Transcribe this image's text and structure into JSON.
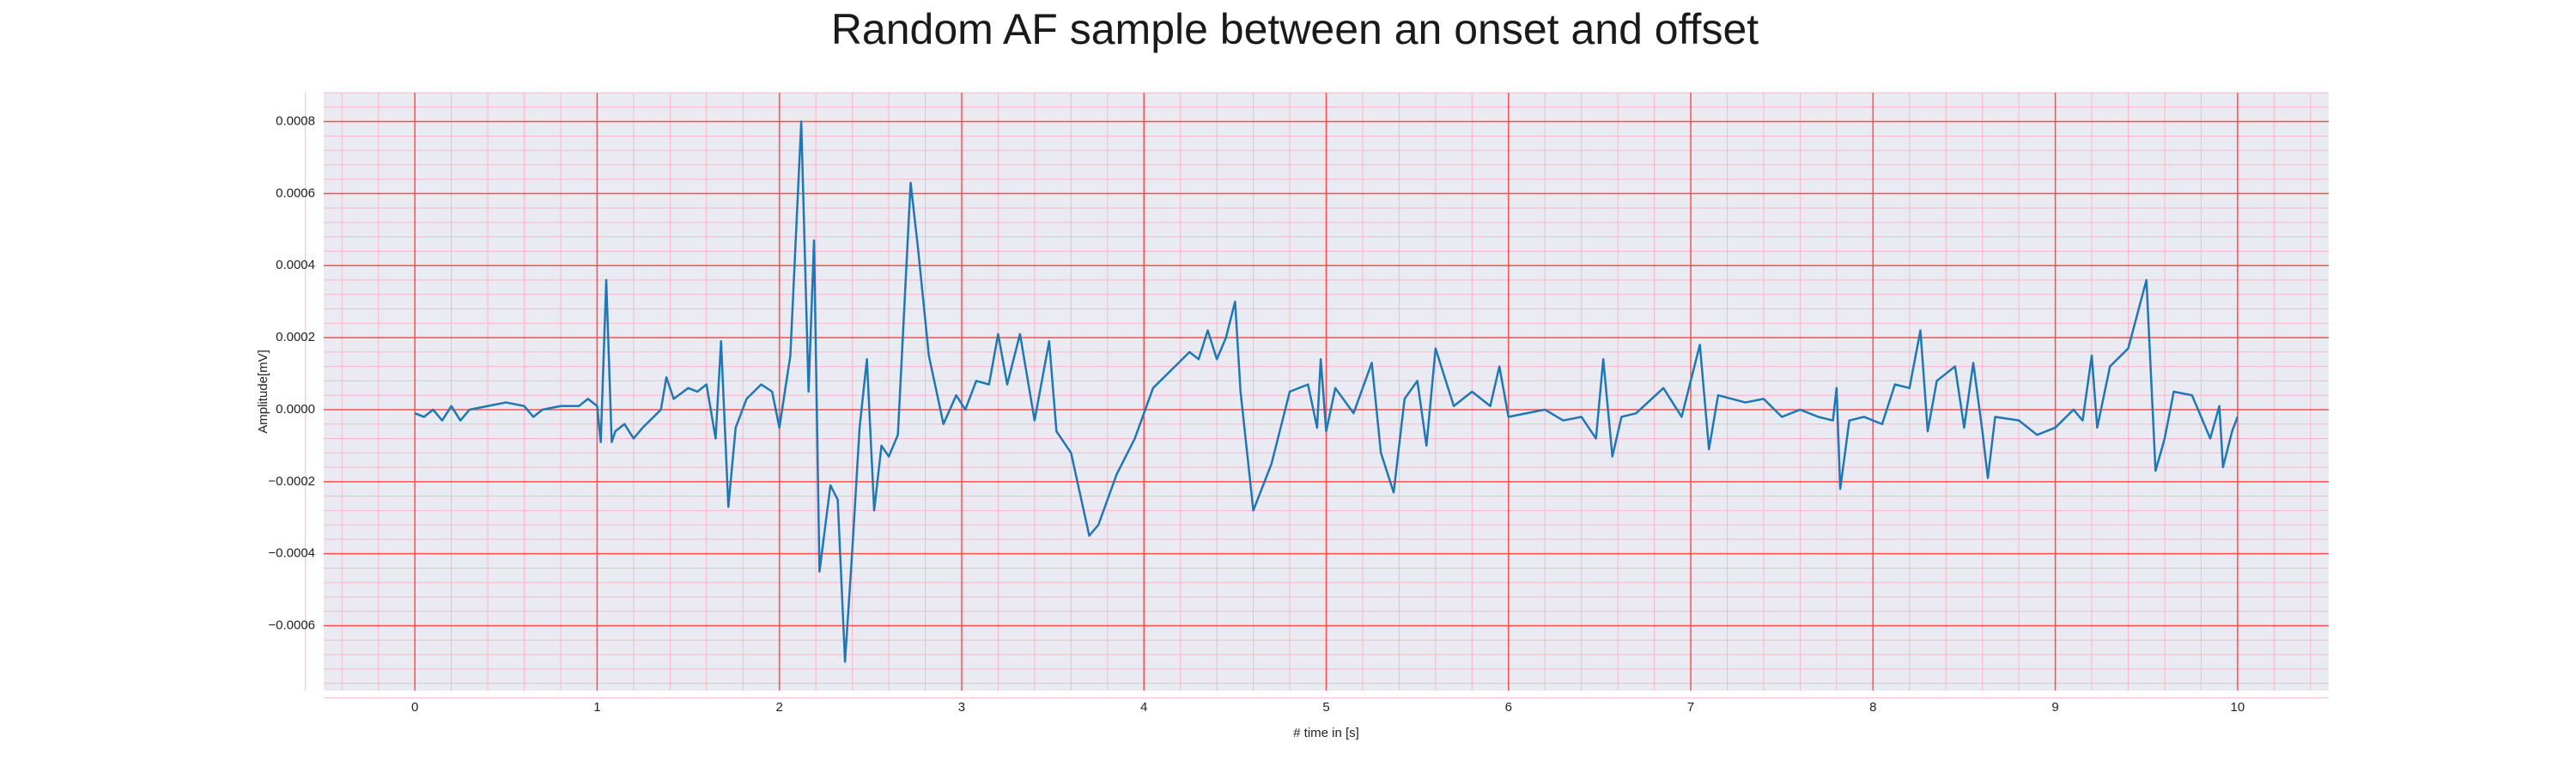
{
  "chart_data": {
    "type": "line",
    "title": "Random AF sample between an onset and offset",
    "xlabel": "# time in [s]",
    "ylabel": "Amplitude[mV]",
    "xlim": [
      -0.5,
      10.5
    ],
    "ylim": [
      -0.00078,
      0.00088
    ],
    "xticks": [
      0,
      1,
      2,
      3,
      4,
      5,
      6,
      7,
      8,
      9,
      10
    ],
    "yticks": [
      {
        "value": -0.0006,
        "label": "−0.0006"
      },
      {
        "value": -0.0004,
        "label": "−0.0004"
      },
      {
        "value": -0.0002,
        "label": "−0.0002"
      },
      {
        "value": 0,
        "label": "0.0000"
      },
      {
        "value": 0.0002,
        "label": "0.0002"
      },
      {
        "value": 0.0004,
        "label": "0.0004"
      },
      {
        "value": 0.0006,
        "label": "0.0006"
      },
      {
        "value": 0.0008,
        "label": "0.0008"
      }
    ],
    "grid": true,
    "minor_grid": true,
    "grid_color": "#ff4d4d",
    "minor_grid_color": "#f7b8c8",
    "background": "#eaeaf2",
    "series": [
      {
        "color": "#1f77b4",
        "x": [
          0,
          0.05,
          0.1,
          0.15,
          0.2,
          0.25,
          0.3,
          0.4,
          0.5,
          0.6,
          0.65,
          0.7,
          0.8,
          0.9,
          0.95,
          1.0,
          1.02,
          1.05,
          1.08,
          1.1,
          1.15,
          1.2,
          1.25,
          1.35,
          1.38,
          1.42,
          1.5,
          1.55,
          1.6,
          1.65,
          1.68,
          1.72,
          1.76,
          1.82,
          1.9,
          1.96,
          2.0,
          2.06,
          2.12,
          2.16,
          2.19,
          2.22,
          2.28,
          2.32,
          2.36,
          2.4,
          2.44,
          2.48,
          2.52,
          2.56,
          2.6,
          2.65,
          2.72,
          2.76,
          2.82,
          2.9,
          2.97,
          3.02,
          3.08,
          3.15,
          3.2,
          3.25,
          3.32,
          3.4,
          3.48,
          3.52,
          3.6,
          3.7,
          3.75,
          3.85,
          3.95,
          4.05,
          4.15,
          4.25,
          4.3,
          4.35,
          4.4,
          4.45,
          4.5,
          4.53,
          4.6,
          4.7,
          4.8,
          4.9,
          4.95,
          4.97,
          5.0,
          5.05,
          5.15,
          5.25,
          5.3,
          5.37,
          5.43,
          5.5,
          5.55,
          5.6,
          5.7,
          5.8,
          5.9,
          5.95,
          6.0,
          6.1,
          6.2,
          6.3,
          6.4,
          6.48,
          6.52,
          6.57,
          6.62,
          6.7,
          6.85,
          6.95,
          7.05,
          7.1,
          7.15,
          7.3,
          7.4,
          7.5,
          7.6,
          7.7,
          7.78,
          7.8,
          7.82,
          7.87,
          7.95,
          8.05,
          8.12,
          8.2,
          8.26,
          8.3,
          8.35,
          8.45,
          8.5,
          8.55,
          8.6,
          8.63,
          8.67,
          8.8,
          8.9,
          9.0,
          9.1,
          9.15,
          9.2,
          9.23,
          9.3,
          9.4,
          9.5,
          9.55,
          9.6,
          9.65,
          9.75,
          9.85,
          9.9,
          9.92,
          9.97,
          10.0
        ],
        "values": [
          -1e-05,
          -2e-05,
          0.0,
          -3e-05,
          1e-05,
          -3e-05,
          0.0,
          1e-05,
          2e-05,
          1e-05,
          -2e-05,
          0.0,
          1e-05,
          1e-05,
          3e-05,
          1e-05,
          -9e-05,
          0.00036,
          -9e-05,
          -6e-05,
          -4e-05,
          -8e-05,
          -5e-05,
          0.0,
          9e-05,
          3e-05,
          6e-05,
          5e-05,
          7e-05,
          -8e-05,
          0.00019,
          -0.00027,
          -5e-05,
          3e-05,
          7e-05,
          5e-05,
          -5e-05,
          0.00015,
          0.0008,
          5e-05,
          0.00047,
          -0.00045,
          -0.00021,
          -0.00025,
          -0.0007,
          -0.00039,
          -5e-05,
          0.00014,
          -0.00028,
          -0.0001,
          -0.00013,
          -7e-05,
          0.00063,
          0.00045,
          0.00015,
          -4e-05,
          4e-05,
          0.0,
          8e-05,
          7e-05,
          0.00021,
          7e-05,
          0.00021,
          -3e-05,
          0.00019,
          -6e-05,
          -0.00012,
          -0.00035,
          -0.00032,
          -0.00018,
          -8e-05,
          6e-05,
          0.00011,
          0.00016,
          0.00014,
          0.00022,
          0.00014,
          0.0002,
          0.0003,
          5e-05,
          -0.00028,
          -0.00015,
          5e-05,
          7e-05,
          -5e-05,
          0.00014,
          -6e-05,
          6e-05,
          -1e-05,
          0.00013,
          -0.00012,
          -0.00023,
          3e-05,
          8e-05,
          -0.0001,
          0.00017,
          1e-05,
          5e-05,
          1e-05,
          0.00012,
          -2e-05,
          -1e-05,
          0.0,
          -3e-05,
          -2e-05,
          -8e-05,
          0.00014,
          -0.00013,
          -2e-05,
          -1e-05,
          6e-05,
          -2e-05,
          0.00018,
          -0.00011,
          4e-05,
          2e-05,
          3e-05,
          -2e-05,
          0.0,
          -2e-05,
          -3e-05,
          6e-05,
          -0.00022,
          -3e-05,
          -2e-05,
          -4e-05,
          7e-05,
          6e-05,
          0.00022,
          -6e-05,
          8e-05,
          0.00012,
          -5e-05,
          0.00013,
          -6e-05,
          -0.00019,
          -2e-05,
          -3e-05,
          -7e-05,
          -5e-05,
          0.0,
          -3e-05,
          0.00015,
          -5e-05,
          0.00012,
          0.00017,
          0.00036,
          -0.00017,
          -8e-05,
          5e-05,
          4e-05,
          -8e-05,
          1e-05,
          -0.00016,
          -6e-05,
          -2e-05
        ]
      }
    ]
  }
}
